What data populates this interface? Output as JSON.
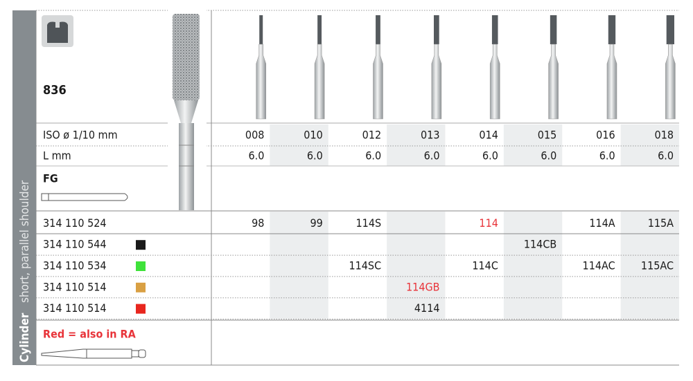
{
  "sidebar": {
    "title": "Cylinder",
    "subtitle": "short, parallel shoulder"
  },
  "product": {
    "number": "836",
    "shank": "FG",
    "note": "Red = also in RA",
    "note_color": "#e8343a"
  },
  "table": {
    "sizes_label": "ISO ø 1/10 mm",
    "sizes": [
      "008",
      "010",
      "012",
      "013",
      "014",
      "015",
      "016",
      "018"
    ],
    "length_label": "L mm",
    "lengths": [
      "6.0",
      "6.0",
      "6.0",
      "6.0",
      "6.0",
      "6.0",
      "6.0",
      "6.0"
    ],
    "rows": [
      {
        "code": "314 110 524",
        "swatch": null,
        "cells": [
          "98",
          "99",
          "114S",
          null,
          {
            "text": "114",
            "color": "#e8343a"
          },
          null,
          "114A",
          "115A"
        ]
      },
      {
        "code": "314 110 544",
        "swatch": "#1a1a1a",
        "cells": [
          null,
          null,
          null,
          null,
          null,
          "114CB",
          null,
          null
        ]
      },
      {
        "code": "314 110 534",
        "swatch": "#3fe23a",
        "cells": [
          null,
          null,
          "114SC",
          null,
          "114C",
          null,
          "114AC",
          "115AC"
        ]
      },
      {
        "code": "314 110 514",
        "swatch": "#d9a043",
        "cells": [
          null,
          null,
          null,
          {
            "text": "114GB",
            "color": "#e8343a"
          },
          null,
          null,
          null,
          null
        ]
      },
      {
        "code": "314 110 514",
        "swatch": "#e8261e",
        "cells": [
          null,
          null,
          null,
          "4114",
          null,
          null,
          null,
          null
        ]
      }
    ]
  }
}
